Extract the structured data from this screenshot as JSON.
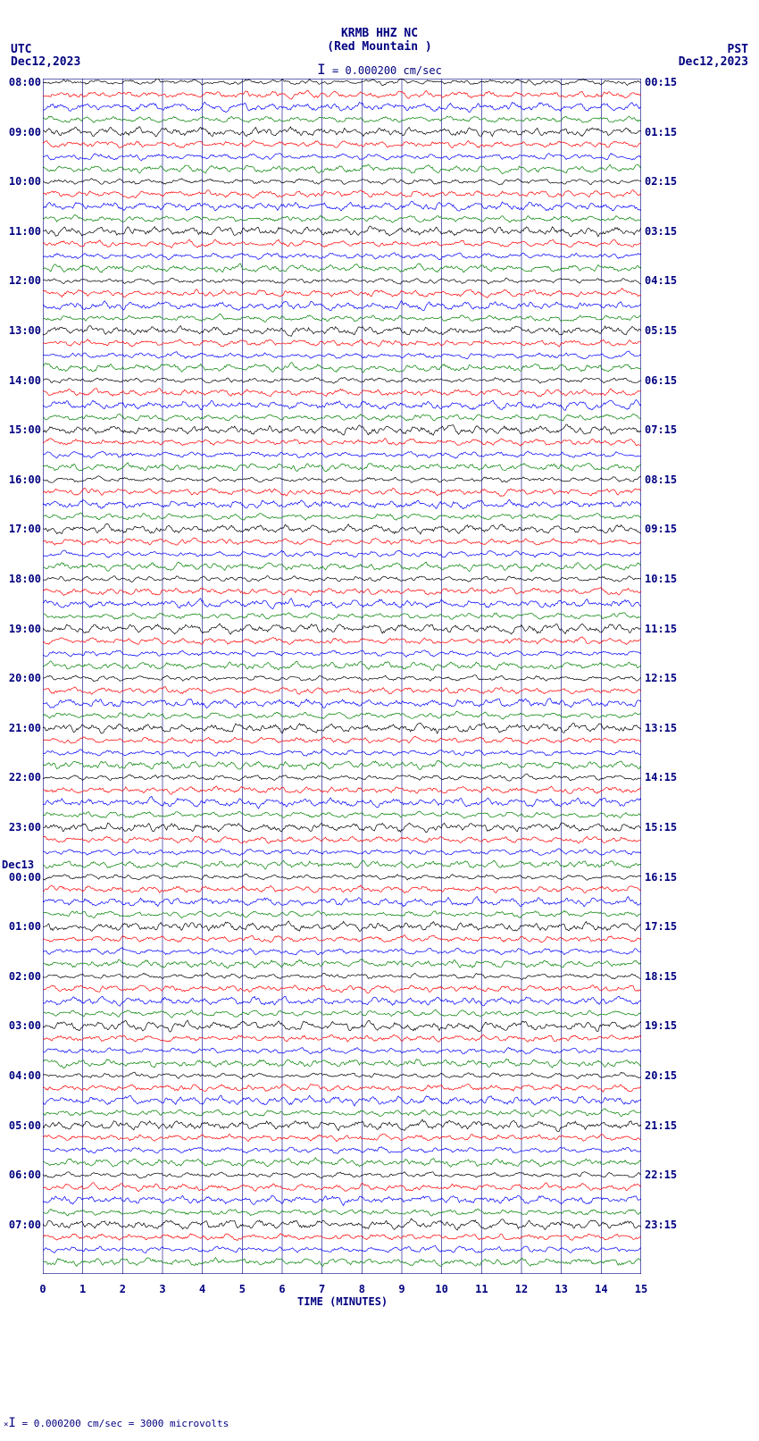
{
  "header": {
    "station": "KRMB HHZ NC",
    "location": "(Red Mountain )",
    "scale_text": "= 0.000200 cm/sec",
    "tz_left": "UTC",
    "date_left": "Dec12,2023",
    "tz_right": "PST",
    "date_right": "Dec12,2023"
  },
  "plot": {
    "x_minutes": 15,
    "x_ticks": [
      0,
      1,
      2,
      3,
      4,
      5,
      6,
      7,
      8,
      9,
      10,
      11,
      12,
      13,
      14,
      15
    ],
    "x_title": "TIME (MINUTES)",
    "grid_color": "#000080",
    "grid_minor": "#b0b0d0",
    "background": "#ffffff",
    "trace_colors": [
      "#000000",
      "#ff0000",
      "#0000ff",
      "#008000"
    ],
    "line_width": 0.7,
    "n_rows": 96,
    "row_height": 13.9,
    "amplitude": 4.5,
    "amplitude_variants": [
      3.5,
      4.5,
      5.5,
      4.0,
      6.0,
      4.2,
      3.8,
      5.0
    ],
    "left_times": [
      {
        "row": 0,
        "label": "08:00"
      },
      {
        "row": 4,
        "label": "09:00"
      },
      {
        "row": 8,
        "label": "10:00"
      },
      {
        "row": 12,
        "label": "11:00"
      },
      {
        "row": 16,
        "label": "12:00"
      },
      {
        "row": 20,
        "label": "13:00"
      },
      {
        "row": 24,
        "label": "14:00"
      },
      {
        "row": 28,
        "label": "15:00"
      },
      {
        "row": 32,
        "label": "16:00"
      },
      {
        "row": 36,
        "label": "17:00"
      },
      {
        "row": 40,
        "label": "18:00"
      },
      {
        "row": 44,
        "label": "19:00"
      },
      {
        "row": 48,
        "label": "20:00"
      },
      {
        "row": 52,
        "label": "21:00"
      },
      {
        "row": 56,
        "label": "22:00"
      },
      {
        "row": 60,
        "label": "23:00"
      },
      {
        "row": 64,
        "label": "00:00"
      },
      {
        "row": 68,
        "label": "01:00"
      },
      {
        "row": 72,
        "label": "02:00"
      },
      {
        "row": 76,
        "label": "03:00"
      },
      {
        "row": 80,
        "label": "04:00"
      },
      {
        "row": 84,
        "label": "05:00"
      },
      {
        "row": 88,
        "label": "06:00"
      },
      {
        "row": 92,
        "label": "07:00"
      }
    ],
    "right_times": [
      {
        "row": 0,
        "label": "00:15"
      },
      {
        "row": 4,
        "label": "01:15"
      },
      {
        "row": 8,
        "label": "02:15"
      },
      {
        "row": 12,
        "label": "03:15"
      },
      {
        "row": 16,
        "label": "04:15"
      },
      {
        "row": 20,
        "label": "05:15"
      },
      {
        "row": 24,
        "label": "06:15"
      },
      {
        "row": 28,
        "label": "07:15"
      },
      {
        "row": 32,
        "label": "08:15"
      },
      {
        "row": 36,
        "label": "09:15"
      },
      {
        "row": 40,
        "label": "10:15"
      },
      {
        "row": 44,
        "label": "11:15"
      },
      {
        "row": 48,
        "label": "12:15"
      },
      {
        "row": 52,
        "label": "13:15"
      },
      {
        "row": 56,
        "label": "14:15"
      },
      {
        "row": 60,
        "label": "15:15"
      },
      {
        "row": 64,
        "label": "16:15"
      },
      {
        "row": 68,
        "label": "17:15"
      },
      {
        "row": 72,
        "label": "18:15"
      },
      {
        "row": 76,
        "label": "19:15"
      },
      {
        "row": 80,
        "label": "20:15"
      },
      {
        "row": 84,
        "label": "21:15"
      },
      {
        "row": 88,
        "label": "22:15"
      },
      {
        "row": 92,
        "label": "23:15"
      }
    ],
    "date_marker": {
      "row": 63,
      "label": "Dec13"
    }
  },
  "footer": {
    "text": "= 0.000200 cm/sec =   3000 microvolts"
  }
}
